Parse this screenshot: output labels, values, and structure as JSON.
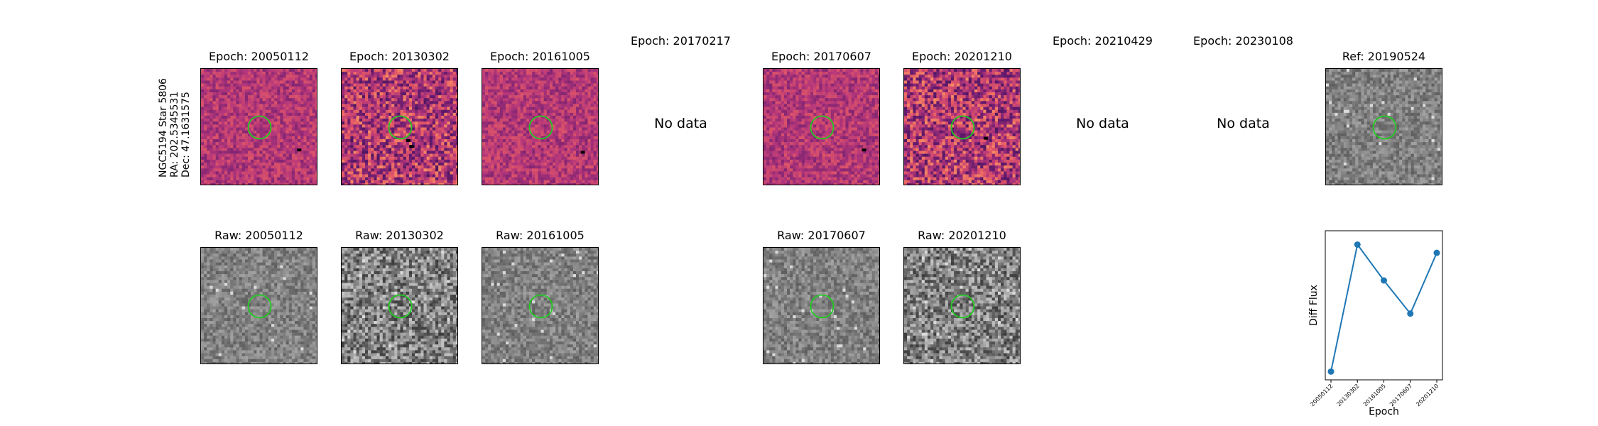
{
  "star_label": [
    "NGC5194 Star 5806",
    "RA: 202.5345531",
    "Dec: 47.1631575"
  ],
  "top_row": [
    {
      "title": "Epoch: 20050112",
      "has_data": true,
      "style": "diff",
      "seed": 11,
      "dark": [
        [
          0.82,
          0.68
        ]
      ]
    },
    {
      "title": "Epoch: 20130302",
      "has_data": true,
      "style": "diff-noisy",
      "seed": 23,
      "dark": [
        [
          0.55,
          0.6
        ],
        [
          0.58,
          0.65
        ]
      ]
    },
    {
      "title": "Epoch: 20161005",
      "has_data": true,
      "style": "diff",
      "seed": 37,
      "dark": [
        [
          0.84,
          0.7
        ]
      ]
    },
    {
      "title": "Epoch: 20170217",
      "has_data": false,
      "nodata_text": "No data"
    },
    {
      "title": "Epoch: 20170607",
      "has_data": true,
      "style": "diff",
      "seed": 51,
      "dark": [
        [
          0.84,
          0.68
        ]
      ]
    },
    {
      "title": "Epoch: 20201210",
      "has_data": true,
      "style": "diff-noisy2",
      "seed": 67,
      "dark": [
        [
          0.68,
          0.58
        ]
      ]
    },
    {
      "title": "Epoch: 20210429",
      "has_data": false,
      "nodata_text": "No data"
    },
    {
      "title": "Epoch: 20230108",
      "has_data": false,
      "nodata_text": "No data"
    },
    {
      "title": "Ref: 20190524",
      "has_data": true,
      "style": "ref",
      "seed": 89
    }
  ],
  "bottom_row": [
    {
      "title": "Raw: 20050112",
      "style": "raw",
      "seed": 12
    },
    {
      "title": "Raw: 20130302",
      "style": "raw-noisy",
      "seed": 24
    },
    {
      "title": "Raw: 20161005",
      "style": "raw",
      "seed": 38
    },
    {
      "title": "Raw: 20170607",
      "style": "raw",
      "seed": 52
    },
    {
      "title": "Raw: 20201210",
      "style": "raw-noisy",
      "seed": 68
    }
  ],
  "colors": {
    "circle": "#22cc22",
    "line": "#1f77b4"
  },
  "chart_data": {
    "type": "line",
    "categories": [
      "20050112",
      "20130302",
      "20161005",
      "20170607",
      "20201210"
    ],
    "values": [
      -0.8,
      1.5,
      0.85,
      0.25,
      1.35
    ],
    "xlabel": "Epoch",
    "ylabel": "Diff Flux",
    "ylim": [
      -0.95,
      1.75
    ],
    "grid": false
  }
}
